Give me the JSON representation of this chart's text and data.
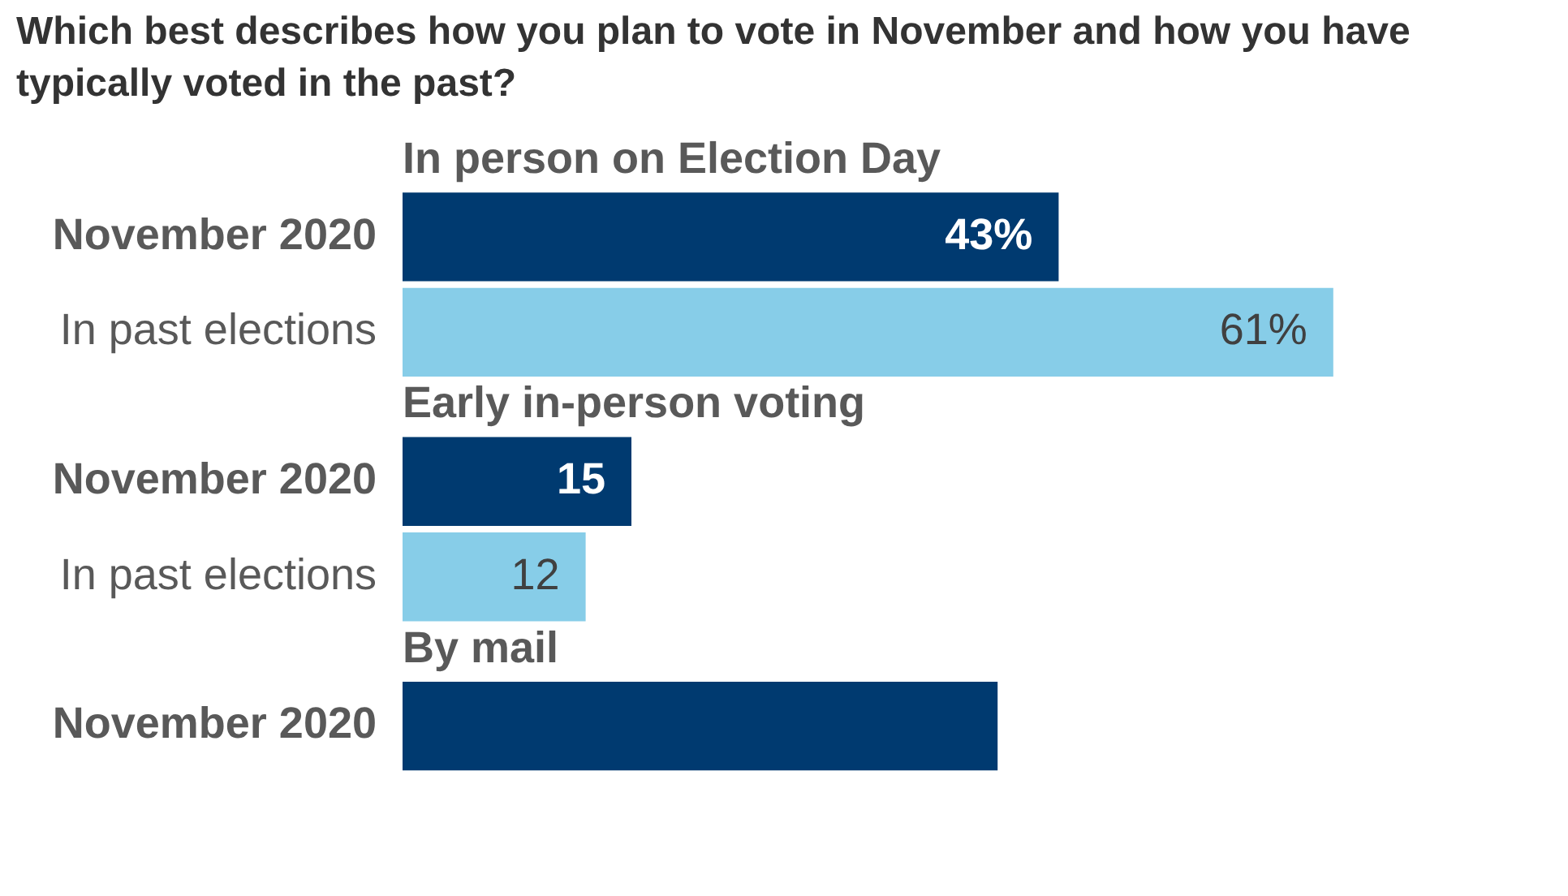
{
  "chart_data": {
    "type": "bar",
    "orientation": "horizontal",
    "title": "Which best describes how you plan to vote in November and how you have typically voted in the past?",
    "categories": [
      "In person on Election Day",
      "Early in-person voting",
      "By mail"
    ],
    "series": [
      {
        "name": "November 2020",
        "color": "#003a70",
        "values": [
          43,
          15,
          39
        ],
        "value_labels": [
          "43%",
          "15",
          null
        ]
      },
      {
        "name": "In past elections",
        "color": "#87cde8",
        "values": [
          61,
          12,
          null
        ],
        "value_labels": [
          "61%",
          "12",
          null
        ]
      }
    ]
  }
}
